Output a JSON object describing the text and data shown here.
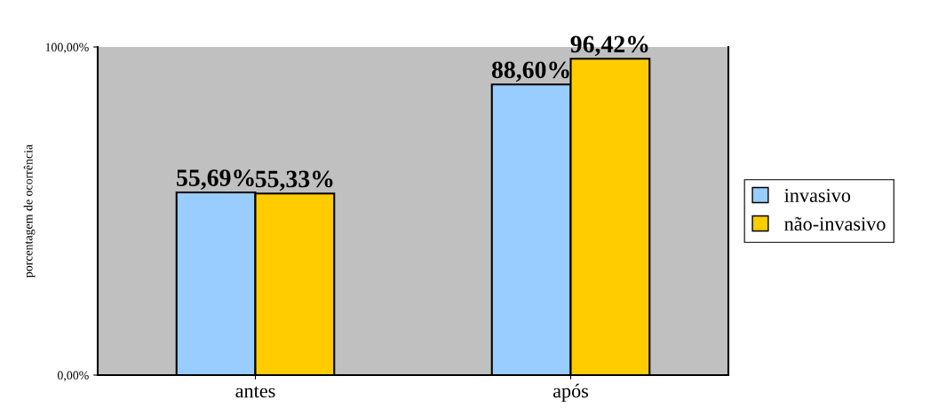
{
  "chart_data": {
    "type": "bar",
    "ylabel": "porcentagem de ocorrência",
    "categories": [
      "antes",
      "após"
    ],
    "series": [
      {
        "name": "invasivo",
        "color": "#99ccff",
        "values": [
          55.69,
          88.6
        ],
        "value_labels": [
          "55,69%",
          "88,60%"
        ]
      },
      {
        "name": "não-invasivo",
        "color": "#ffcc00",
        "values": [
          55.33,
          96.42
        ],
        "value_labels": [
          "55,33%",
          "96,42%"
        ]
      }
    ],
    "ylim": [
      0,
      100
    ],
    "yticks": [
      {
        "value": 0,
        "label": "0,00%"
      },
      {
        "value": 100,
        "label": "100,00%"
      }
    ],
    "grid": false,
    "legend": "right"
  }
}
